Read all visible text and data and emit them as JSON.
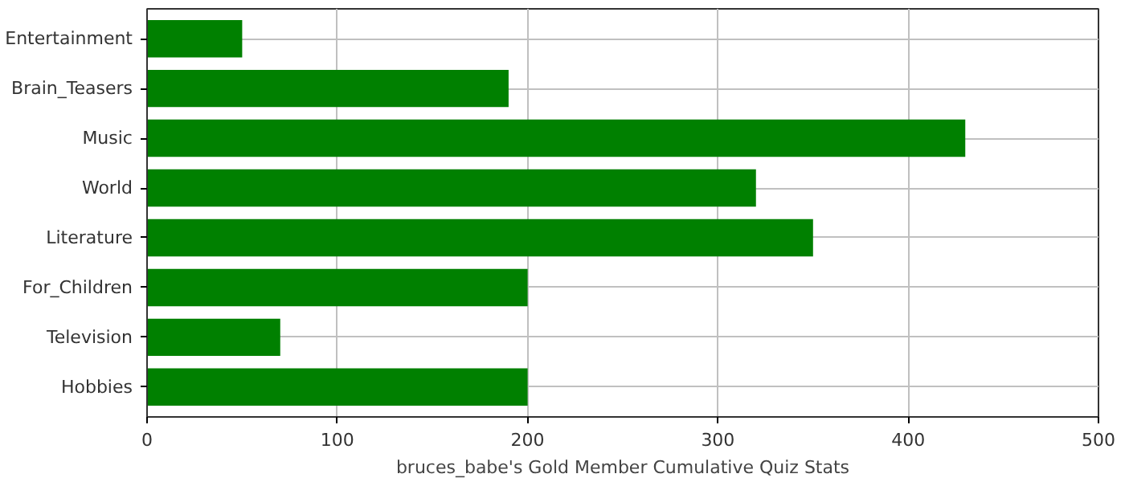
{
  "chart_data": {
    "type": "bar",
    "orientation": "horizontal",
    "xlabel": "bruces_babe's Gold Member Cumulative Quiz Stats",
    "categories": [
      "Entertainment",
      "Brain_Teasers",
      "Music",
      "World",
      "Literature",
      "For_Children",
      "Television",
      "Hobbies"
    ],
    "values": [
      50,
      190,
      430,
      320,
      350,
      200,
      70,
      200
    ],
    "color": "#008000",
    "xlim": [
      0,
      500
    ],
    "xticks": [
      0,
      100,
      200,
      300,
      400,
      500
    ],
    "grid": true
  }
}
